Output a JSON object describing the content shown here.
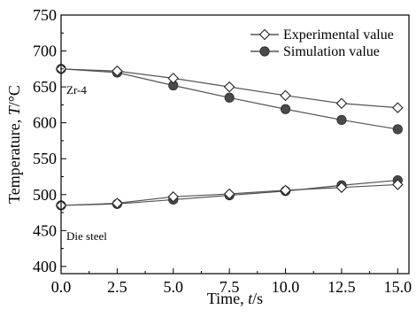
{
  "chart_data": {
    "type": "line",
    "x": [
      0.0,
      2.5,
      5.0,
      7.5,
      10.0,
      12.5,
      15.0
    ],
    "xlim": [
      0,
      15.5
    ],
    "ylim": [
      390,
      750
    ],
    "x_ticks": [
      "0.0",
      "2.5",
      "5.0",
      "7.5",
      "10.0",
      "12.5",
      "15.0"
    ],
    "y_ticks": [
      "400",
      "450",
      "500",
      "550",
      "600",
      "650",
      "700",
      "750"
    ],
    "xlabel": {
      "prefix": "Time, ",
      "var": "t",
      "suffix": "/s"
    },
    "ylabel": {
      "prefix": "Temperature, ",
      "var": "T",
      "suffix": "/°C"
    },
    "legend_position": "top-right",
    "series": [
      {
        "name": "Experimental value",
        "group": "Zr-4",
        "marker": "open-diamond",
        "color": "#555555",
        "values": [
          675,
          672,
          662,
          650,
          638,
          627,
          621
        ]
      },
      {
        "name": "Simulation value",
        "group": "Zr-4",
        "marker": "filled-circle",
        "color": "#555555",
        "values": [
          675,
          670,
          652,
          635,
          619,
          604,
          591
        ]
      },
      {
        "name": "Experimental value",
        "group": "Die steel",
        "marker": "open-diamond",
        "color": "#555555",
        "values": [
          485,
          488,
          497,
          501,
          506,
          510,
          514
        ]
      },
      {
        "name": "Simulation value",
        "group": "Die steel",
        "marker": "filled-circle",
        "color": "#555555",
        "values": [
          485,
          487,
          493,
          499,
          505,
          513,
          520
        ]
      }
    ],
    "legend": [
      {
        "label": "Experimental value",
        "marker": "open-diamond"
      },
      {
        "label": "Simulation value",
        "marker": "filled-circle"
      }
    ],
    "annotations": [
      "Zr-4",
      "Die steel"
    ]
  }
}
